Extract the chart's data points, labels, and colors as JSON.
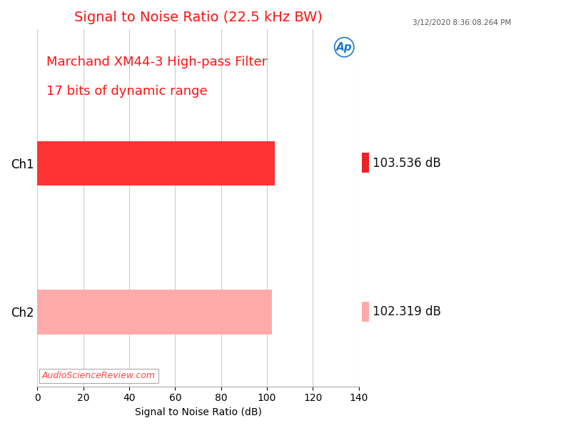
{
  "title": "Signal to Noise Ratio (22.5 kHz BW)",
  "title_color": "#FF1111",
  "subtitle_line1": "Marchand XM44-3 High-pass Filter",
  "subtitle_line2": "17 bits of dynamic range",
  "subtitle_color": "#FF1111",
  "timestamp": "3/12/2020 8:36:08.264 PM",
  "xlabel": "Signal to Noise Ratio (dB)",
  "categories": [
    "Ch1",
    "Ch2"
  ],
  "values": [
    103.536,
    102.319
  ],
  "bar_colors": [
    "#FF3333",
    "#FFAAAA"
  ],
  "legend_colors": [
    "#EE2222",
    "#FFAAAA"
  ],
  "legend_labels": [
    "103.536 dB",
    "102.319 dB"
  ],
  "xlim": [
    0,
    140
  ],
  "xticks": [
    0,
    20,
    40,
    60,
    80,
    100,
    120,
    140
  ],
  "bar_height": 0.6,
  "watermark": "AudioScienceReview.com",
  "watermark_color": "#FF4444",
  "background_color": "#FFFFFF",
  "grid_color": "#CCCCCC",
  "title_fontsize": 14,
  "subtitle_fontsize": 13,
  "axis_fontsize": 10,
  "ytick_fontsize": 12,
  "xtick_fontsize": 10,
  "legend_fontsize": 12
}
